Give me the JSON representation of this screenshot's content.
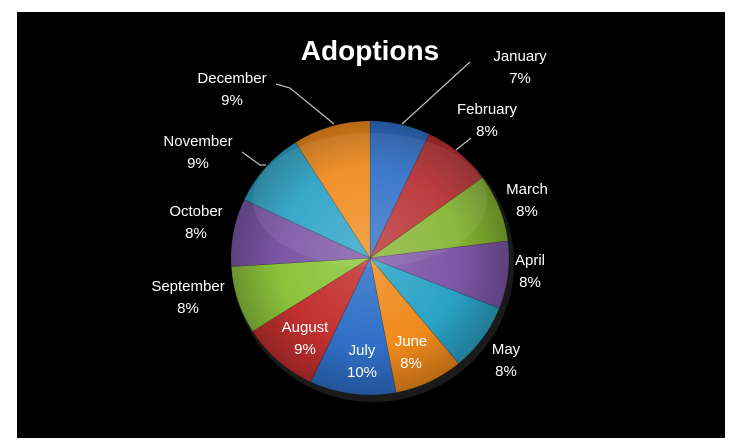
{
  "chart_data": {
    "type": "pie",
    "title": "Adoptions",
    "legend": "none",
    "slices": [
      {
        "label": "January",
        "value": 7,
        "display": "7%",
        "color": "#2f6fc6"
      },
      {
        "label": "February",
        "value": 8,
        "display": "8%",
        "color": "#b82f31"
      },
      {
        "label": "March",
        "value": 8,
        "display": "8%",
        "color": "#84b431"
      },
      {
        "label": "April",
        "value": 8,
        "display": "8%",
        "color": "#7c56a6"
      },
      {
        "label": "May",
        "value": 8,
        "display": "8%",
        "color": "#2aa3c6"
      },
      {
        "label": "June",
        "value": 8,
        "display": "8%",
        "color": "#f08a1c"
      },
      {
        "label": "July",
        "value": 10,
        "display": "10%",
        "color": "#2f6fc6"
      },
      {
        "label": "August",
        "value": 9,
        "display": "9%",
        "color": "#c2302f"
      },
      {
        "label": "September",
        "value": 8,
        "display": "8%",
        "color": "#8cc43c"
      },
      {
        "label": "October",
        "value": 8,
        "display": "8%",
        "color": "#7c56a6"
      },
      {
        "label": "November",
        "value": 9,
        "display": "9%",
        "color": "#2aa3c6"
      },
      {
        "label": "December",
        "value": 9,
        "display": "9%",
        "color": "#f08a1c"
      }
    ]
  }
}
